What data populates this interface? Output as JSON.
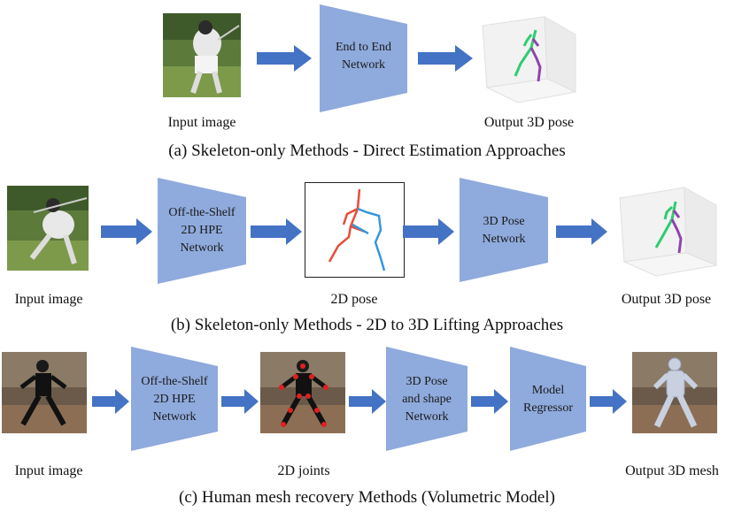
{
  "colors": {
    "block_fill": "#8faadc",
    "arrow": "#4472c4",
    "pose_green": "#2ecc71",
    "pose_purple": "#8e44ad",
    "pose_red": "#e74c3c",
    "pose_blue": "#3498db",
    "joint_red": "#e02020"
  },
  "row_a": {
    "input_label": "Input image",
    "block": {
      "line1": "End to End",
      "line2": "Network"
    },
    "output_label": "Output 3D pose",
    "caption": "(a) Skeleton-only Methods - Direct Estimation Approaches"
  },
  "row_b": {
    "input_label": "Input image",
    "block1": {
      "line1": "Off-the-Shelf",
      "line2": "2D HPE",
      "line3": "Network"
    },
    "mid_label": "2D pose",
    "block2": {
      "line1": "3D Pose",
      "line2": "Network"
    },
    "output_label": "Output 3D pose",
    "caption": "(b) Skeleton-only Methods - 2D to 3D Lifting Approaches"
  },
  "row_c": {
    "input_label": "Input image",
    "block1": {
      "line1": "Off-the-Shelf",
      "line2": "2D HPE",
      "line3": "Network"
    },
    "mid_label": "2D joints",
    "block2": {
      "line1": "3D Pose",
      "line2": "and shape",
      "line3": "Network"
    },
    "block3": {
      "line1": "Model",
      "line2": "Regressor"
    },
    "output_label": "Output 3D mesh",
    "caption": "(c) Human mesh recovery Methods (Volumetric Model)"
  }
}
